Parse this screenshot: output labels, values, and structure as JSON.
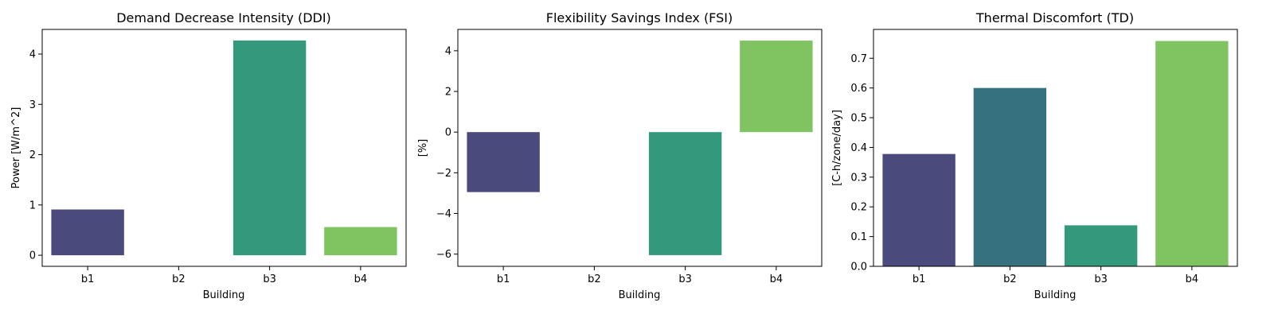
{
  "chart_data": [
    {
      "type": "bar",
      "title": "Demand Decrease Intensity (DDI)",
      "xlabel": "Building",
      "ylabel": "Power [W/m^2]",
      "categories": [
        "b1",
        "b2",
        "b3",
        "b4"
      ],
      "values": [
        0.91,
        0,
        4.27,
        0.56
      ],
      "colors": [
        "#4a4a7d",
        "#36717f",
        "#34987c",
        "#80c462"
      ],
      "ylim": [
        -0.22,
        4.49
      ],
      "yticks": [
        0,
        1,
        2,
        3,
        4
      ],
      "ytick_labels": [
        "0",
        "1",
        "2",
        "3",
        "4"
      ],
      "grid": false
    },
    {
      "type": "bar",
      "title": "Flexibility Savings Index (FSI)",
      "xlabel": "Building",
      "ylabel": "[%]",
      "categories": [
        "b1",
        "b2",
        "b3",
        "b4"
      ],
      "values": [
        -2.95,
        0,
        -6.05,
        4.5
      ],
      "colors": [
        "#4a4a7d",
        "#36717f",
        "#34987c",
        "#80c462"
      ],
      "ylim": [
        -6.6,
        5.05
      ],
      "yticks": [
        -6,
        -4,
        -2,
        0,
        2,
        4
      ],
      "ytick_labels": [
        "−6",
        "−4",
        "−2",
        "0",
        "2",
        "4"
      ],
      "grid": false
    },
    {
      "type": "bar",
      "title": "Thermal Discomfort (TD)",
      "xlabel": "Building",
      "ylabel": "[C-h/zone/day]",
      "categories": [
        "b1",
        "b2",
        "b3",
        "b4"
      ],
      "values": [
        0.378,
        0.6,
        0.138,
        0.758
      ],
      "colors": [
        "#4a4a7d",
        "#36717f",
        "#34987c",
        "#80c462"
      ],
      "ylim": [
        0,
        0.797
      ],
      "yticks": [
        0,
        0.1,
        0.2,
        0.3,
        0.4,
        0.5,
        0.6,
        0.7
      ],
      "ytick_labels": [
        "0.0",
        "0.1",
        "0.2",
        "0.3",
        "0.4",
        "0.5",
        "0.6",
        "0.7"
      ],
      "grid": false
    }
  ]
}
